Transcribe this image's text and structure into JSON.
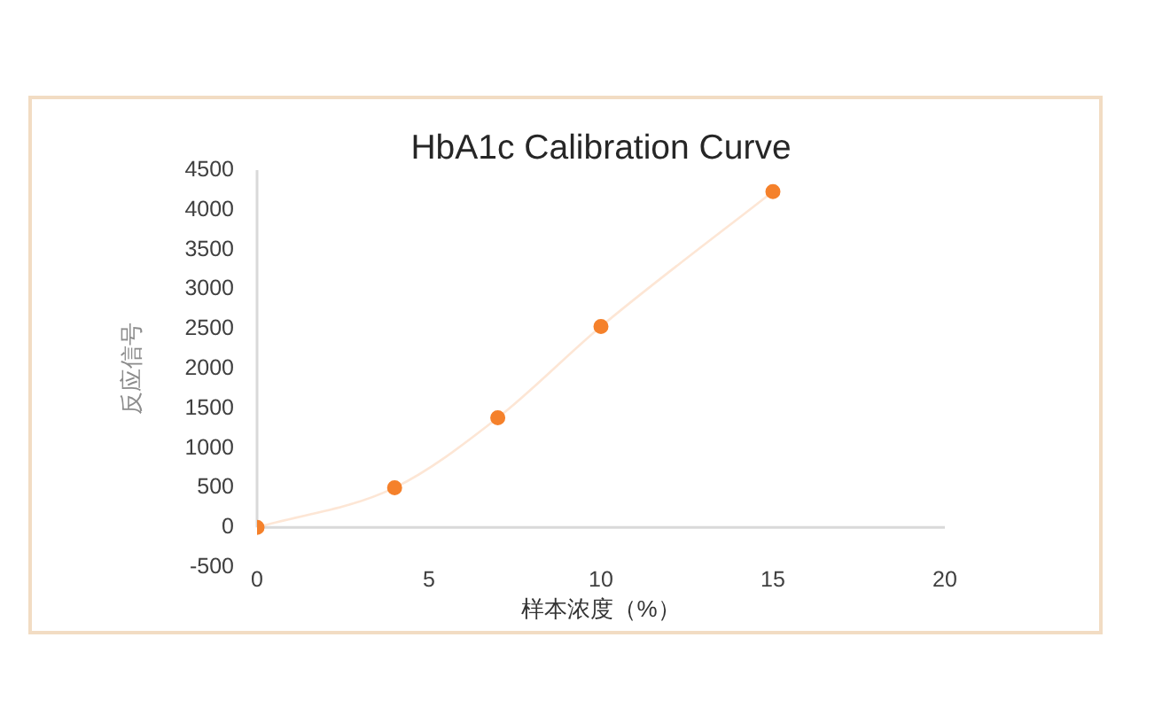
{
  "chart_data": {
    "type": "line",
    "title": "HbA1c Calibration Curve",
    "xlabel": "样本浓度（%）",
    "ylabel": "反应信号",
    "x": [
      0,
      4,
      7,
      10,
      15
    ],
    "series": [
      {
        "color": "#f5812b",
        "values": [
          0,
          500,
          1380,
          2530,
          4230
        ]
      }
    ],
    "xlim": [
      0,
      20
    ],
    "xticks": [
      0,
      5,
      10,
      15,
      20
    ],
    "ylim": [
      -500,
      4500
    ],
    "yticks": [
      -500,
      0,
      500,
      1000,
      1500,
      2000,
      2500,
      3000,
      3500,
      4000,
      4500
    ],
    "marker": "circle"
  }
}
